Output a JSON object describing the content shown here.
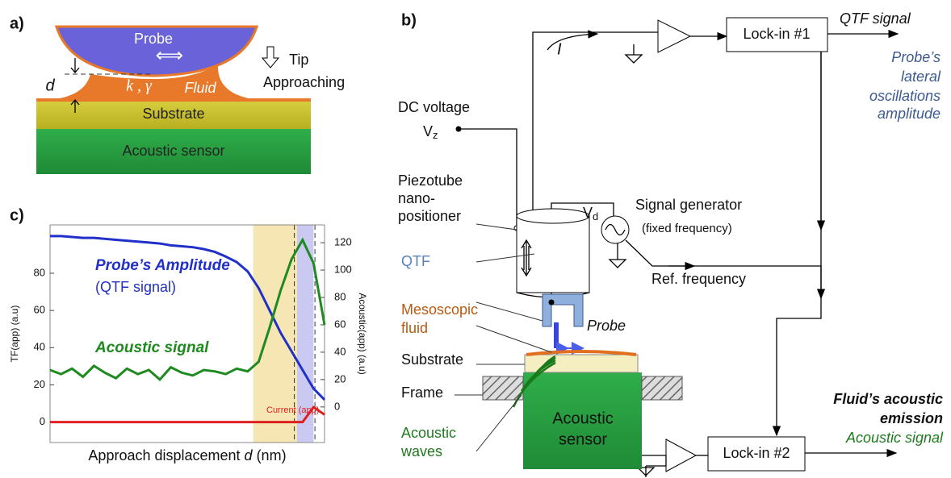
{
  "panel_a": {
    "label": "a)",
    "probe": "Probe",
    "k_gamma": "k , γ",
    "fluid": "Fluid",
    "d": "d",
    "tip": [
      "Tip",
      "Approaching"
    ],
    "substrate": "Substrate",
    "sensor": "Acoustic sensor"
  },
  "panel_b": {
    "label": "b)",
    "qtf_signal": "QTF signal",
    "lateral": [
      "Probe’s",
      "lateral",
      "oscillations",
      "amplitude"
    ],
    "lockin1": "Lock-in #1",
    "lockin2": "Lock-in #2",
    "current": "I",
    "dc_voltage": "DC voltage",
    "vz": [
      "V",
      "z"
    ],
    "piezo": [
      "Piezotube",
      "nano-",
      "positioner"
    ],
    "vd": [
      "V",
      "d"
    ],
    "signal_gen": "Signal generator",
    "fixed": "(fixed frequency)",
    "ref": "Ref. frequency",
    "qtf": "QTF",
    "meso": [
      "Mesoscopic",
      "fluid"
    ],
    "probe": "Probe",
    "substrate": "Substrate",
    "frame": "Frame",
    "waves": [
      "Acoustic",
      "waves"
    ],
    "sensor": [
      "Acoustic",
      "sensor"
    ],
    "emission": [
      "Fluid’s acoustic",
      "emission"
    ],
    "acoustic_signal": "Acoustic signal"
  },
  "chart_data": {
    "type": "line",
    "label": "c)",
    "x_label": [
      "Approach displacement ",
      "d",
      " (nm)"
    ],
    "y_label": "TF(app) (a.u)",
    "y2_label": "Acoustic(app) (a.u)",
    "qtf_note": "(QTF signal)",
    "x": [
      0,
      4,
      8,
      12,
      16,
      20,
      24,
      28,
      32,
      36,
      40,
      44,
      48,
      52,
      56,
      60,
      64,
      68,
      72,
      76,
      80,
      84,
      88,
      92,
      96,
      100
    ],
    "xlim": [
      0,
      100
    ],
    "ylim": [
      -11,
      106
    ],
    "yticks": [
      0,
      20,
      40,
      60,
      80
    ],
    "y2lim": [
      -26,
      133
    ],
    "y2ticks": [
      0,
      20,
      40,
      60,
      80,
      100,
      120
    ],
    "regions": [
      {
        "from": 74,
        "to": 90,
        "color": "#f5e6b4"
      },
      {
        "from": 90,
        "to": 96,
        "color": "#c9c9f2"
      }
    ],
    "dashed_lines": [
      89,
      96.5
    ],
    "series": [
      {
        "name": "Probe’s Amplitude",
        "color": "#2030c8",
        "values": [
          100,
          100,
          99.5,
          99,
          99,
          98.5,
          98,
          97.5,
          97,
          96.5,
          96,
          95,
          94.5,
          94,
          93,
          91.5,
          89,
          86,
          81,
          72,
          60,
          48,
          38,
          28,
          18,
          12
        ]
      },
      {
        "name": "Acoustic signal",
        "color": "#1f8a1f",
        "axis": "y2",
        "values": [
          27,
          24,
          28,
          22,
          30,
          25,
          21,
          28,
          24,
          27,
          20,
          29,
          25,
          23,
          27,
          26,
          24,
          28,
          26,
          33,
          58,
          85,
          108,
          122,
          105,
          60
        ]
      },
      {
        "name": "Current (app)",
        "color": "#e02020",
        "values": [
          0,
          0,
          0,
          0,
          0,
          0,
          0,
          0,
          0,
          0,
          0,
          0,
          0,
          0,
          0,
          0,
          0,
          0,
          0,
          0,
          0,
          0,
          0,
          0,
          8,
          4
        ]
      }
    ]
  }
}
